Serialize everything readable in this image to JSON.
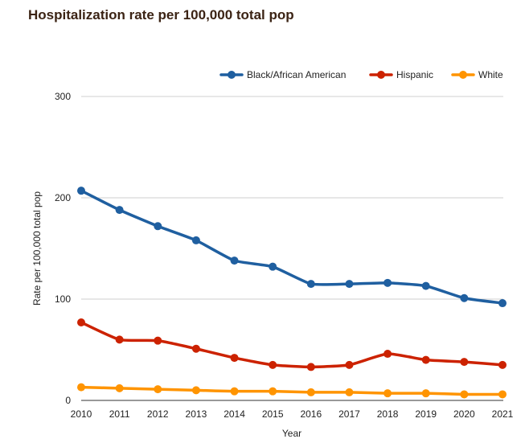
{
  "chart_data": {
    "type": "line",
    "title": "Hospitalization rate per 100,000 total pop",
    "xlabel": "Year",
    "ylabel": "Rate per 100,000 total pop",
    "x": [
      "2010",
      "2011",
      "2012",
      "2013",
      "2014",
      "2015",
      "2016",
      "2017",
      "2018",
      "2019",
      "2020",
      "2021"
    ],
    "ylim": [
      0,
      300
    ],
    "yticks": [
      0,
      100,
      200,
      300
    ],
    "grid": true,
    "legend": "top-right",
    "series": [
      {
        "name": "Black/African American",
        "color": "#1f5fa0",
        "values": [
          207,
          188,
          172,
          158,
          138,
          132,
          115,
          115,
          116,
          113,
          101,
          96
        ]
      },
      {
        "name": "Hispanic",
        "color": "#cc2200",
        "values": [
          77,
          60,
          59,
          51,
          42,
          35,
          33,
          35,
          46,
          40,
          38,
          35
        ]
      },
      {
        "name": "White",
        "color": "#ff9400",
        "values": [
          13,
          12,
          11,
          10,
          9,
          9,
          8,
          8,
          7,
          7,
          6,
          6
        ]
      }
    ]
  }
}
